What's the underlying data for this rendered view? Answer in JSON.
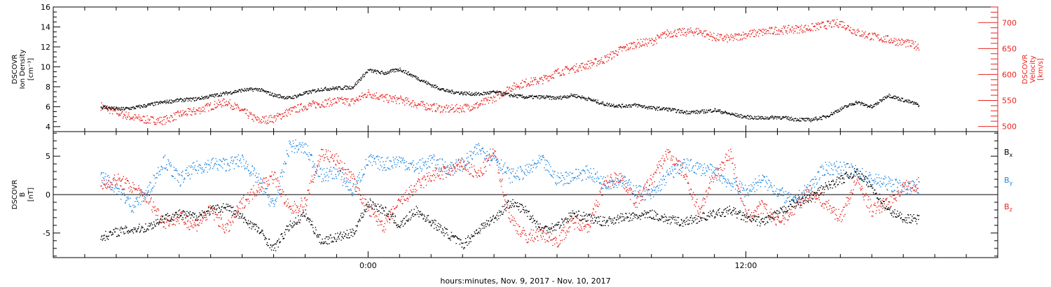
{
  "chart_data": [
    {
      "type": "scatter",
      "panel": "top",
      "y_label_lines": [
        "DSCOVR",
        "Ion Density"
      ],
      "y_unit": "[cm⁻³]",
      "ylim": [
        3.5,
        16
      ],
      "yticks": [
        4,
        6,
        8,
        10,
        12,
        14,
        16
      ],
      "y_label_color": "#000000",
      "y2_label_lines": [
        "DSCOVR",
        "Velocity",
        "[km/s]"
      ],
      "y2lim": [
        490,
        730
      ],
      "y2ticks": [
        500,
        550,
        600,
        650,
        700
      ],
      "y2_color": "#e8221e",
      "series": [
        {
          "name": "",
          "axis": "left",
          "color": "#000000",
          "x": [
            -8.5,
            -7.9,
            -7.5,
            -7,
            -6.5,
            -6,
            -5.5,
            -5,
            -4.5,
            -4,
            -3.5,
            -3,
            -2.5,
            -2,
            -1.5,
            -1,
            -0.5,
            0,
            0.5,
            1,
            1.5,
            2,
            2.5,
            3,
            3.5,
            4,
            4.5,
            5,
            5.5,
            6,
            6.5,
            7,
            7.5,
            8,
            8.5,
            9,
            9.5,
            10,
            10.5,
            11,
            11.5,
            12,
            12.5,
            13,
            13.5,
            14,
            14.5,
            15,
            15.5,
            16,
            16.5,
            17,
            17.5
          ],
          "y": [
            6.0,
            5.8,
            5.9,
            6.2,
            6.5,
            6.7,
            6.8,
            7.1,
            7.4,
            7.7,
            7.8,
            7.2,
            6.9,
            7.4,
            7.8,
            7.9,
            8.0,
            9.7,
            9.4,
            9.8,
            9.0,
            8.2,
            7.6,
            7.4,
            7.3,
            7.5,
            7.2,
            7.0,
            7.0,
            6.9,
            7.2,
            6.8,
            6.3,
            6.1,
            6.2,
            5.9,
            5.8,
            5.5,
            5.5,
            5.7,
            5.3,
            5.0,
            4.9,
            5.0,
            4.8,
            4.7,
            5.0,
            5.8,
            6.5,
            6.0,
            7.2,
            6.7,
            6.2
          ]
        },
        {
          "name": "",
          "axis": "right",
          "color": "#e8221e",
          "x": [
            -8.5,
            -8,
            -7.5,
            -7,
            -6.5,
            -6,
            -5.5,
            -5,
            -4.5,
            -4,
            -3.5,
            -3,
            -2.5,
            -2,
            -1.5,
            -1,
            -0.5,
            0,
            0.5,
            1,
            1.5,
            2,
            2.5,
            3,
            3.5,
            4,
            4.5,
            5,
            5.5,
            6,
            6.5,
            7,
            7.5,
            8,
            8.5,
            9,
            9.5,
            10,
            10.5,
            11,
            11.5,
            12,
            12.5,
            13,
            13.5,
            14,
            14.5,
            15,
            15.5,
            16,
            16.5,
            17,
            17.5
          ],
          "y": [
            540,
            528,
            518,
            513,
            512,
            524,
            530,
            540,
            548,
            530,
            512,
            516,
            530,
            540,
            545,
            550,
            548,
            565,
            555,
            552,
            544,
            538,
            534,
            536,
            542,
            556,
            575,
            585,
            590,
            605,
            612,
            620,
            630,
            648,
            660,
            664,
            680,
            682,
            684,
            672,
            670,
            678,
            682,
            686,
            688,
            690,
            696,
            700,
            682,
            674,
            668,
            662,
            655
          ]
        }
      ]
    },
    {
      "type": "scatter",
      "panel": "bottom",
      "y_label_lines": [
        "DSCOVR",
        "B"
      ],
      "y_unit": "[nT]",
      "ylim": [
        -8.2,
        8.2
      ],
      "yticks": [
        -5,
        0,
        5
      ],
      "zero_line": true,
      "series": [
        {
          "name": "Bx",
          "color": "#000000",
          "x": [
            -8.5,
            -8,
            -7.5,
            -7,
            -6.5,
            -6,
            -5.5,
            -5,
            -4.5,
            -4,
            -3.5,
            -3,
            -2.5,
            -2,
            -1.5,
            -1,
            -0.5,
            0,
            0.5,
            1,
            1.5,
            2,
            2.5,
            3,
            3.5,
            4,
            4.5,
            5,
            5.5,
            6,
            6.5,
            7,
            7.5,
            8,
            8.5,
            9,
            9.5,
            10,
            10.5,
            11,
            11.5,
            12,
            12.5,
            13,
            13.5,
            14,
            14.5,
            15,
            15.5,
            16,
            16.5,
            17,
            17.5
          ],
          "y": [
            -5.5,
            -4.8,
            -4.5,
            -4.2,
            -3.0,
            -2.5,
            -2.8,
            -2.0,
            -1.5,
            -3.0,
            -4.5,
            -7.0,
            -4.0,
            -2.5,
            -6.0,
            -5.5,
            -5.0,
            -1.0,
            -2.0,
            -4.0,
            -2.0,
            -3.5,
            -5.0,
            -6.5,
            -4.5,
            -3.0,
            -1.0,
            -2.0,
            -4.5,
            -4.0,
            -2.5,
            -3.0,
            -3.5,
            -3.0,
            -2.8,
            -2.5,
            -3.2,
            -3.5,
            -3.0,
            -2.5,
            -2.0,
            -3.0,
            -3.5,
            -2.5,
            -1.0,
            -0.5,
            1.0,
            2.0,
            3.0,
            1.0,
            -2.0,
            -3.0,
            -3.2
          ]
        },
        {
          "name": "By",
          "color": "#1f87e0",
          "x": [
            -8.5,
            -8,
            -7.5,
            -7,
            -6.5,
            -6,
            -5.5,
            -5,
            -4.5,
            -4,
            -3.5,
            -3,
            -2.5,
            -2,
            -1.5,
            -1,
            -0.5,
            0,
            0.5,
            1,
            1.5,
            2,
            2.5,
            3,
            3.5,
            4,
            4.5,
            5,
            5.5,
            6,
            6.5,
            7,
            7.5,
            8,
            8.5,
            9,
            9.5,
            10,
            10.5,
            11,
            11.5,
            12,
            12.5,
            13,
            13.5,
            14,
            14.5,
            15,
            15.5,
            16,
            16.5,
            17,
            17.5
          ],
          "y": [
            2.5,
            1.0,
            -1.5,
            0.5,
            4.5,
            2.0,
            3.5,
            4.0,
            4.0,
            4.5,
            2.0,
            -1.5,
            6.5,
            6.0,
            2.5,
            3.0,
            0.5,
            4.5,
            4.0,
            4.5,
            3.5,
            4.5,
            3.5,
            4.0,
            6.0,
            5.0,
            2.5,
            3.0,
            4.5,
            2.0,
            2.5,
            3.0,
            1.5,
            2.0,
            0.5,
            0.0,
            2.5,
            4.0,
            3.5,
            3.0,
            1.5,
            0.5,
            2.0,
            0.5,
            -1.0,
            1.0,
            3.5,
            3.5,
            3.0,
            2.0,
            1.5,
            1.0,
            1.0
          ]
        },
        {
          "name": "Bz",
          "color": "#e8221e",
          "x": [
            -8.5,
            -8,
            -7.5,
            -7,
            -6.5,
            -6,
            -5.5,
            -5,
            -4.5,
            -4,
            -3.5,
            -3,
            -2.5,
            -2,
            -1.5,
            -1,
            -0.5,
            0,
            0.5,
            1,
            1.5,
            2,
            2.5,
            3,
            3.5,
            4,
            4.5,
            5,
            5.5,
            6,
            6.5,
            7,
            7.5,
            8,
            8.5,
            9,
            9.5,
            10,
            10.5,
            11,
            11.5,
            12,
            12.5,
            13,
            13.5,
            14,
            14.5,
            15,
            15.5,
            16,
            16.5,
            17,
            17.5
          ],
          "y": [
            1.0,
            2.0,
            1.0,
            -0.5,
            -3.5,
            -3.0,
            -4.0,
            -2.0,
            -4.5,
            -1.0,
            1.0,
            2.5,
            -2.0,
            -1.0,
            5.5,
            4.5,
            2.0,
            -2.0,
            -4.0,
            -1.0,
            1.0,
            2.5,
            3.0,
            4.0,
            2.5,
            5.5,
            -3.0,
            -5.5,
            -5.0,
            -6.0,
            -3.5,
            -4.0,
            1.5,
            2.5,
            -1.0,
            2.0,
            5.5,
            3.0,
            -2.0,
            2.5,
            5.5,
            -3.0,
            -1.5,
            -3.5,
            -2.0,
            0.5,
            -1.0,
            -3.0,
            2.0,
            -2.0,
            -1.0,
            1.0,
            1.5
          ]
        }
      ],
      "legend": [
        {
          "label": "B",
          "sub": "x",
          "color": "#000000"
        },
        {
          "label": "B",
          "sub": "y",
          "color": "#1f87e0"
        },
        {
          "label": "B",
          "sub": "z",
          "color": "#e8221e"
        }
      ]
    }
  ],
  "x_axis": {
    "xlim": [
      -10,
      20
    ],
    "tick_labels": [
      {
        "x": 0,
        "label": "0:00"
      },
      {
        "x": 12,
        "label": "12:00"
      }
    ],
    "minor_step_hours": 1,
    "major_step_hours": 12,
    "xlabel": "hours:minutes, Nov.  9, 2017 - Nov. 10, 2017"
  }
}
